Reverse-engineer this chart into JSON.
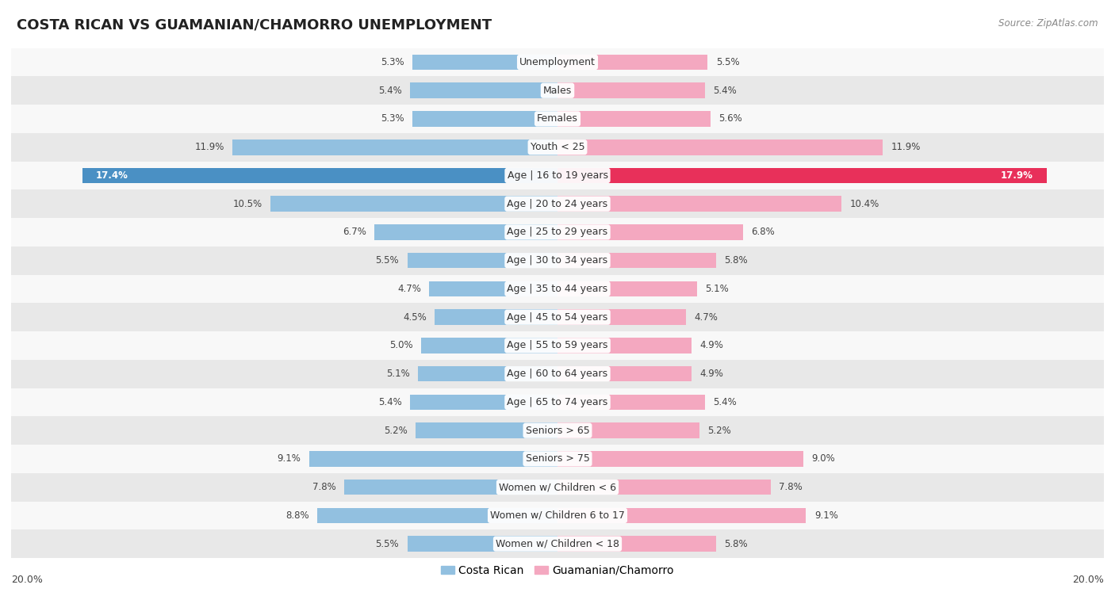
{
  "title": "COSTA RICAN VS GUAMANIAN/CHAMORRO UNEMPLOYMENT",
  "source": "Source: ZipAtlas.com",
  "categories": [
    "Unemployment",
    "Males",
    "Females",
    "Youth < 25",
    "Age | 16 to 19 years",
    "Age | 20 to 24 years",
    "Age | 25 to 29 years",
    "Age | 30 to 34 years",
    "Age | 35 to 44 years",
    "Age | 45 to 54 years",
    "Age | 55 to 59 years",
    "Age | 60 to 64 years",
    "Age | 65 to 74 years",
    "Seniors > 65",
    "Seniors > 75",
    "Women w/ Children < 6",
    "Women w/ Children 6 to 17",
    "Women w/ Children < 18"
  ],
  "costa_rican": [
    5.3,
    5.4,
    5.3,
    11.9,
    17.4,
    10.5,
    6.7,
    5.5,
    4.7,
    4.5,
    5.0,
    5.1,
    5.4,
    5.2,
    9.1,
    7.8,
    8.8,
    5.5
  ],
  "guamanian": [
    5.5,
    5.4,
    5.6,
    11.9,
    17.9,
    10.4,
    6.8,
    5.8,
    5.1,
    4.7,
    4.9,
    4.9,
    5.4,
    5.2,
    9.0,
    7.8,
    9.1,
    5.8
  ],
  "costa_rican_color": "#92c0e0",
  "guamanian_color": "#f4a8c0",
  "highlight_costa_rican_color": "#4a90c4",
  "highlight_guamanian_color": "#e8305a",
  "background_row_odd": "#e8e8e8",
  "background_row_even": "#f8f8f8",
  "xlim": 20.0,
  "legend_label_left": "Costa Rican",
  "legend_label_right": "Guamanian/Chamorro",
  "title_fontsize": 13,
  "label_fontsize": 9.0,
  "value_fontsize": 8.5
}
